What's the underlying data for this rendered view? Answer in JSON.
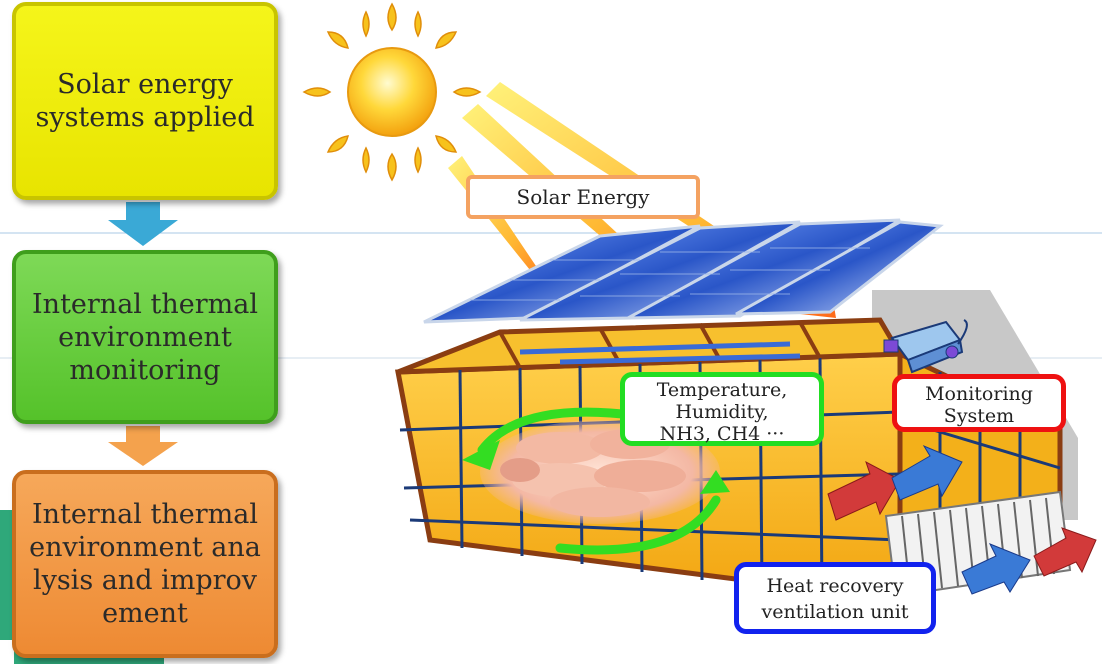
{
  "steps": [
    {
      "label": "Solar energy\nsystems applied"
    },
    {
      "label": "Internal thermal\nenvironment\nmonitoring"
    },
    {
      "label": "Internal thermal\nenvironment ana\nlysis and improv\nement"
    }
  ],
  "callouts": {
    "solar_energy": "Solar Energy",
    "measurements": "Temperature,\nHumidity,\nNH3, CH4 ···",
    "monitoring_system": "Monitoring\nSystem",
    "heat_recovery": "Heat recovery\nventilation unit"
  },
  "colors": {
    "step_1": "#f0ee10",
    "step_2": "#66cc33",
    "step_3": "#f19a45",
    "flow_arrow_1": "#3aa9d6",
    "flow_arrow_2": "#f4a24d",
    "solar_box_border": "#f4a261",
    "measure_box_border": "#22dd22",
    "monitor_box_border": "#ee1111",
    "hrv_box_border": "#1122ee",
    "barn_frame": "#8a3d12",
    "barn_fill": "#f5b21a",
    "panel_blue": "#2a56c8",
    "sun": "#f7c21c"
  }
}
